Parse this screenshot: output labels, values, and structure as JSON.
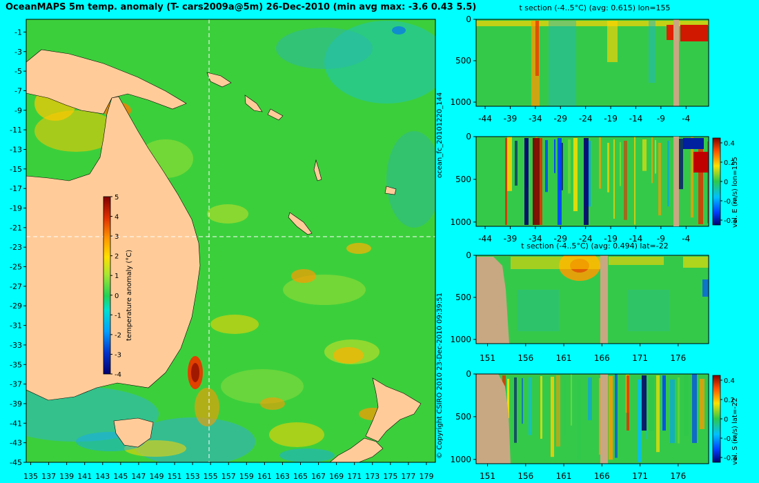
{
  "header": {
    "title": "OceanMAPS 5m temp. anomaly (T- cars2009a@5m) 26-Dec-2010 (min avg max: -3.6 0.43 5.5)"
  },
  "side_labels": {
    "forecast_id": "ocean_fc_20101220_144",
    "copyright": "© Copyright CSIRO 2010   23-Dec-2010 09:39:51"
  },
  "colors": {
    "background": "#00ffff",
    "land": "#ffcc99",
    "section_land": "#c8a882"
  },
  "chart_data": [
    {
      "type": "heatmap",
      "name": "map",
      "title": "",
      "x_ticks": [
        "135",
        "137",
        "139",
        "141",
        "143",
        "145",
        "147",
        "149",
        "151",
        "153",
        "155",
        "157",
        "159",
        "161",
        "163",
        "165",
        "167",
        "169",
        "171",
        "173",
        "175",
        "177",
        "179"
      ],
      "y_ticks": [
        "-1",
        "-3",
        "-5",
        "-7",
        "-9",
        "-11",
        "-13",
        "-15",
        "-17",
        "-19",
        "-21",
        "-23",
        "-25",
        "-27",
        "-29",
        "-31",
        "-33",
        "-35",
        "-37",
        "-39",
        "-41",
        "-43",
        "-45"
      ],
      "xlim": [
        134.5,
        180
      ],
      "ylim": [
        -45,
        0.3
      ],
      "crosshair": {
        "lon": 155,
        "lat": -22
      },
      "colorbar": {
        "label": "temperature anomaly (°C)",
        "ticks": [
          "5",
          "4",
          "3",
          "2",
          "1",
          "0",
          "-1",
          "-2",
          "-3",
          "-4"
        ],
        "range": [
          -4,
          5
        ]
      }
    },
    {
      "type": "heatmap",
      "name": "t_section_lon",
      "title": "t section (-4..5°C) (avg: 0.615) lon=155",
      "x_ticks": [
        "-44",
        "-39",
        "-34",
        "-29",
        "-24",
        "-19",
        "-14",
        "-9",
        "-4"
      ],
      "y_ticks": [
        "0",
        "500",
        "1000"
      ],
      "xlim": [
        -45.8,
        0.5
      ],
      "ylim": [
        1050,
        0
      ]
    },
    {
      "type": "heatmap",
      "name": "u_section_lon",
      "title": "",
      "x_ticks": [
        "-44",
        "-39",
        "-34",
        "-29",
        "-24",
        "-19",
        "-14",
        "-9",
        "-4"
      ],
      "y_ticks": [
        "0",
        "500",
        "1000"
      ],
      "xlim": [
        -45.8,
        0.5
      ],
      "ylim": [
        1050,
        0
      ],
      "colorbar": {
        "label": "vel. E (m/s) lon=155",
        "ticks": [
          "0.4",
          "0.2",
          "0",
          "-0.2",
          "-0.4"
        ],
        "range": [
          -0.45,
          0.45
        ]
      }
    },
    {
      "type": "heatmap",
      "name": "t_section_lat",
      "title": "t section (-4..5°C) (avg: 0.494) lat=-22",
      "x_ticks": [
        "151",
        "156",
        "161",
        "166",
        "171",
        "176"
      ],
      "y_ticks": [
        "0",
        "500",
        "1000"
      ],
      "xlim": [
        149.5,
        180
      ],
      "ylim": [
        1050,
        0
      ]
    },
    {
      "type": "heatmap",
      "name": "v_section_lat",
      "title": "",
      "x_ticks": [
        "151",
        "156",
        "161",
        "166",
        "171",
        "176"
      ],
      "y_ticks": [
        "0",
        "500",
        "1000"
      ],
      "xlim": [
        149.5,
        180
      ],
      "ylim": [
        1050,
        0
      ],
      "colorbar": {
        "label": "vel. S (m/s) lat=-22",
        "ticks": [
          "0.4",
          "0.2",
          "0",
          "-0.2",
          "-0.4"
        ],
        "range": [
          -0.45,
          0.45
        ]
      }
    }
  ]
}
